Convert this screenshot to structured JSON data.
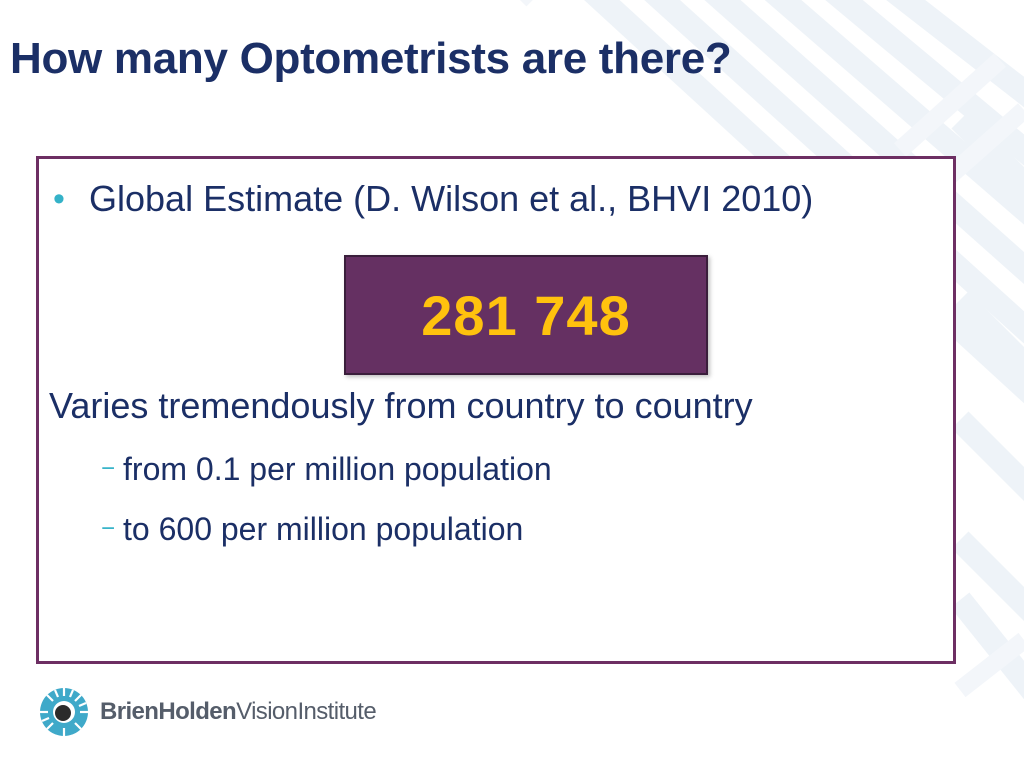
{
  "slide": {
    "title": "How many Optometrists are there?"
  },
  "content": {
    "bullet_symbol": "•",
    "bullet_text": "Global Estimate (D. Wilson et al., BHVI 2010)",
    "highlight_value": "281 748",
    "paragraph": "Varies tremendously from country to country",
    "sub_dash": "−",
    "sub_items": [
      "from 0.1 per million population",
      "to 600 per million population"
    ]
  },
  "logo": {
    "name_part1": "Brien",
    "name_part2": "Holden",
    "name_part3": "Vision",
    "name_part4": "Institute"
  },
  "colors": {
    "title": "#1b2f66",
    "box_border": "#6d2f63",
    "highlight_bg": "#653062",
    "highlight_text": "#ffc20e",
    "accent": "#34b2c8"
  }
}
